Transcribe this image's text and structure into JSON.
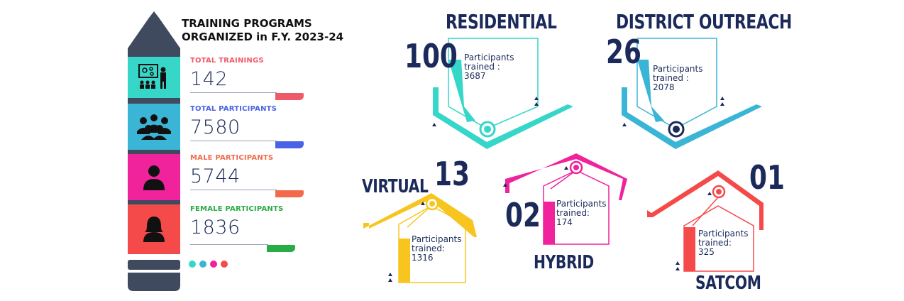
{
  "header": {
    "title_line1": "TRAINING PROGRAMS",
    "title_line2": "ORGANIZED in F.Y. 2023-24"
  },
  "stats": [
    {
      "label": "TOTAL TRAININGS",
      "value": "142",
      "color": "#ef5a6b",
      "icon": "presentation-icon",
      "box_color": "#36d6c9"
    },
    {
      "label": "TOTAL PARTICIPANTS",
      "value": "7580",
      "color": "#4a62e6",
      "icon": "group-icon",
      "box_color": "#3bb5d6"
    },
    {
      "label": "MALE PARTICIPANTS",
      "value": "5744",
      "color": "#f26a4b",
      "icon": "male-user-icon",
      "box_color": "#f0229c"
    },
    {
      "label": "FEMALE PARTICIPANTS",
      "value": "1836",
      "color": "#29ab45",
      "icon": "female-user-icon",
      "box_color": "#f54a4a"
    }
  ],
  "dots": [
    "#36d6c9",
    "#3bb5d6",
    "#f0229c",
    "#f54a4a"
  ],
  "programs": {
    "residential": {
      "name": "RESIDENTIAL",
      "count": "100",
      "line1": "Participants",
      "line2": "trained :",
      "value": "3687",
      "color": "#36d6c9"
    },
    "district": {
      "name": "DISTRICT OUTREACH",
      "count": "26",
      "line1": "Participants",
      "line2": "trained :",
      "value": "2078",
      "color": "#3bb5d6"
    },
    "virtual": {
      "name": "VIRTUAL",
      "count": "13",
      "line1": "Participants",
      "line2": "trained:",
      "value": "1316",
      "color": "#f7c51e"
    },
    "hybrid": {
      "name": "HYBRID",
      "count": "02",
      "line1": "Participants",
      "line2": "trained:",
      "value": "174",
      "color": "#f0229c"
    },
    "satcom": {
      "name": "SATCOM",
      "count": "01",
      "line1": "Participants",
      "line2": "trained:",
      "value": "325",
      "color": "#f54a4a"
    }
  }
}
